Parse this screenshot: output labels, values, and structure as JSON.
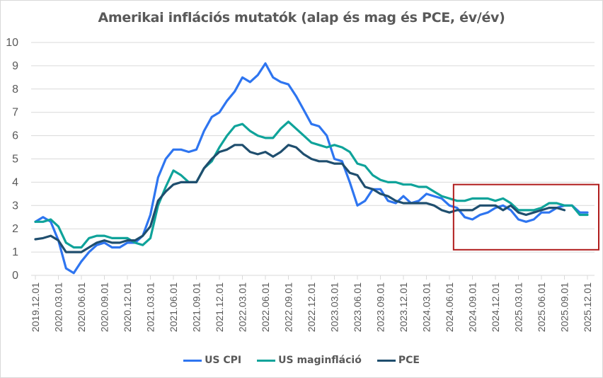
{
  "chart_data": {
    "type": "line",
    "title": "Amerikai inflációs mutatók (alap és mag és PCE, év/év)",
    "xlabel": "",
    "ylabel": "",
    "ylim": [
      0,
      10
    ],
    "yticks": [
      "0",
      "1",
      "2",
      "3",
      "4",
      "5",
      "6",
      "7",
      "8",
      "9",
      "10"
    ],
    "grid": true,
    "legend_position": "bottom",
    "x": [
      "2019.12.01",
      "2020.01.01",
      "2020.02.01",
      "2020.03.01",
      "2020.04.01",
      "2020.05.01",
      "2020.06.01",
      "2020.07.01",
      "2020.08.01",
      "2020.09.01",
      "2020.10.01",
      "2020.11.01",
      "2020.12.01",
      "2021.01.01",
      "2021.02.01",
      "2021.03.01",
      "2021.04.01",
      "2021.05.01",
      "2021.06.01",
      "2021.07.01",
      "2021.08.01",
      "2021.09.01",
      "2021.10.01",
      "2021.11.01",
      "2021.12.01",
      "2022.01.01",
      "2022.02.01",
      "2022.03.01",
      "2022.04.01",
      "2022.05.01",
      "2022.06.01",
      "2022.07.01",
      "2022.08.01",
      "2022.09.01",
      "2022.10.01",
      "2022.11.01",
      "2022.12.01",
      "2023.01.01",
      "2023.02.01",
      "2023.03.01",
      "2023.04.01",
      "2023.05.01",
      "2023.06.01",
      "2023.07.01",
      "2023.08.01",
      "2023.09.01",
      "2023.10.01",
      "2023.11.01",
      "2023.12.01",
      "2024.01.01",
      "2024.02.01",
      "2024.03.01",
      "2024.04.01",
      "2024.05.01",
      "2024.06.01",
      "2024.07.01",
      "2024.08.01",
      "2024.09.01",
      "2024.10.01",
      "2024.11.01",
      "2024.12.01",
      "2025.01.01",
      "2025.02.01",
      "2025.03.01",
      "2025.04.01",
      "2025.05.01",
      "2025.06.01",
      "2025.07.01",
      "2025.08.01",
      "2025.09.01",
      "2025.10.01",
      "2025.11.01",
      "2025.12.01"
    ],
    "xtick_labels": [
      "2019.12.01",
      "2020.03.01",
      "2020.06.01",
      "2020.09.01",
      "2020.12.01",
      "2021.03.01",
      "2021.06.01",
      "2021.09.01",
      "2021.12.01",
      "2022.03.01",
      "2022.06.01",
      "2022.09.01",
      "2022.12.01",
      "2023.03.01",
      "2023.06.01",
      "2023.09.01",
      "2023.12.01",
      "2024.03.01",
      "2024.06.01",
      "2024.09.01",
      "2024.12.01",
      "2025.03.01",
      "2025.06.01",
      "2025.09.01",
      "2025.12.01"
    ],
    "series": [
      {
        "name": "US CPI",
        "color": "#2e75f0",
        "values": [
          2.3,
          2.5,
          2.3,
          1.5,
          0.3,
          0.1,
          0.6,
          1.0,
          1.3,
          1.4,
          1.2,
          1.2,
          1.4,
          1.4,
          1.7,
          2.6,
          4.2,
          5.0,
          5.4,
          5.4,
          5.3,
          5.4,
          6.2,
          6.8,
          7.0,
          7.5,
          7.9,
          8.5,
          8.3,
          8.6,
          9.1,
          8.5,
          8.3,
          8.2,
          7.7,
          7.1,
          6.5,
          6.4,
          6.0,
          5.0,
          4.9,
          4.0,
          3.0,
          3.2,
          3.7,
          3.7,
          3.2,
          3.1,
          3.4,
          3.1,
          3.2,
          3.5,
          3.4,
          3.3,
          3.0,
          2.9,
          2.5,
          2.4,
          2.6,
          2.7,
          2.9,
          3.0,
          2.8,
          2.4,
          2.3,
          2.4,
          2.7,
          2.7,
          2.9,
          3.0,
          3.0,
          2.7,
          2.7
        ]
      },
      {
        "name": "US maginfláció",
        "color": "#0fa39a",
        "values": [
          2.3,
          2.3,
          2.4,
          2.1,
          1.4,
          1.2,
          1.2,
          1.6,
          1.7,
          1.7,
          1.6,
          1.6,
          1.6,
          1.4,
          1.3,
          1.6,
          3.0,
          3.8,
          4.5,
          4.3,
          4.0,
          4.0,
          4.6,
          4.9,
          5.5,
          6.0,
          6.4,
          6.5,
          6.2,
          6.0,
          5.9,
          5.9,
          6.3,
          6.6,
          6.3,
          6.0,
          5.7,
          5.6,
          5.5,
          5.6,
          5.5,
          5.3,
          4.8,
          4.7,
          4.3,
          4.1,
          4.0,
          4.0,
          3.9,
          3.9,
          3.8,
          3.8,
          3.6,
          3.4,
          3.3,
          3.2,
          3.2,
          3.3,
          3.3,
          3.3,
          3.2,
          3.3,
          3.1,
          2.8,
          2.8,
          2.8,
          2.9,
          3.1,
          3.1,
          3.0,
          3.0,
          2.6,
          2.6
        ]
      },
      {
        "name": "PCE",
        "color": "#1f4e6e",
        "values": [
          1.55,
          1.6,
          1.7,
          1.5,
          1.0,
          1.0,
          1.0,
          1.2,
          1.4,
          1.5,
          1.4,
          1.4,
          1.5,
          1.5,
          1.7,
          2.1,
          3.2,
          3.6,
          3.9,
          4.0,
          4.0,
          4.0,
          4.6,
          5.0,
          5.3,
          5.4,
          5.6,
          5.6,
          5.3,
          5.2,
          5.3,
          5.1,
          5.3,
          5.6,
          5.5,
          5.2,
          5.0,
          4.9,
          4.9,
          4.8,
          4.8,
          4.4,
          4.3,
          3.8,
          3.7,
          3.5,
          3.4,
          3.2,
          3.1,
          3.1,
          3.1,
          3.1,
          3.0,
          2.8,
          2.7,
          2.8,
          2.8,
          2.8,
          3.0,
          3.0,
          3.0,
          2.8,
          3.0,
          2.7,
          2.6,
          2.7,
          2.8,
          2.9,
          2.9,
          2.8,
          null,
          null,
          null
        ]
      }
    ],
    "annotations": [
      {
        "type": "rectangle",
        "color": "#b01c1c",
        "x_range": [
          "2024.07.01",
          "2025.12.01"
        ],
        "y_range": [
          1.1,
          3.9
        ],
        "label": ""
      }
    ]
  }
}
